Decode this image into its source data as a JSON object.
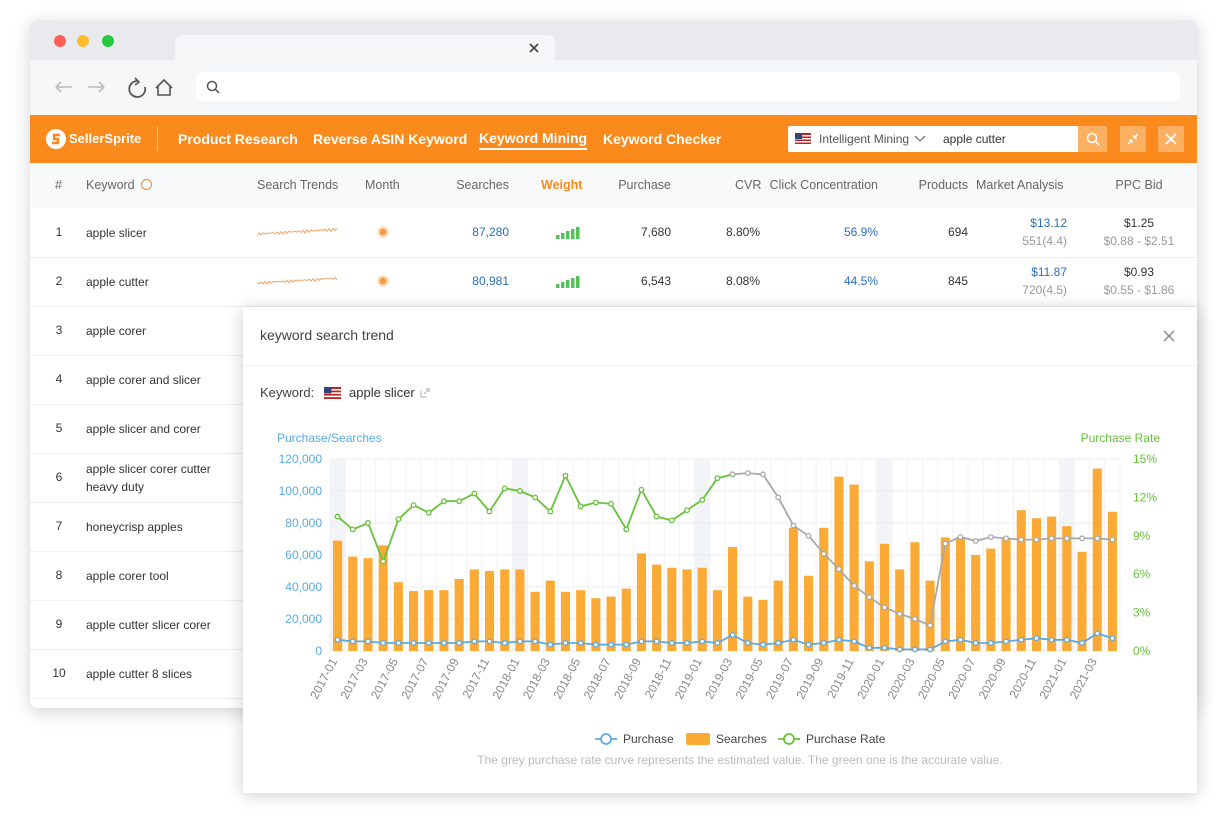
{
  "nav": {
    "logo": "SellerSprite",
    "items": [
      "Product Research",
      "Reverse ASIN Keyword",
      "Keyword Mining",
      "Keyword Checker"
    ],
    "mode": "Intelligent Mining",
    "query": "apple cutter"
  },
  "table": {
    "headers": {
      "no": "#",
      "keyword": "Keyword",
      "trends": "Search Trends",
      "month": "Month",
      "searches": "Searches",
      "weight": "Weight",
      "purchase": "Purchase",
      "cvr": "CVR",
      "click": "Click Concentration",
      "products": "Products",
      "market": "Market Analysis",
      "ppc": "PPC Bid"
    },
    "rows": [
      {
        "no": "1",
        "keyword": "apple slicer",
        "searches": "87,280",
        "purchase": "7,680",
        "cvr": "8.80%",
        "click": "56.9%",
        "products": "694",
        "market": "$13.12",
        "market_sub": "551(4.4)",
        "ppc": "$1.25",
        "ppc_range": "$0.88 - $2.51"
      },
      {
        "no": "2",
        "keyword": "apple cutter",
        "searches": "80,981",
        "purchase": "6,543",
        "cvr": "8.08%",
        "click": "44.5%",
        "products": "845",
        "market": "$11.87",
        "market_sub": "720(4.5)",
        "ppc": "$0.93",
        "ppc_range": "$0.55 - $1.86"
      },
      {
        "no": "3",
        "keyword": "apple corer"
      },
      {
        "no": "4",
        "keyword": "apple corer and slicer"
      },
      {
        "no": "5",
        "keyword": "apple slicer and corer"
      },
      {
        "no": "6",
        "keyword": "apple slicer corer cutter heavy duty"
      },
      {
        "no": "7",
        "keyword": "honeycrisp apples"
      },
      {
        "no": "8",
        "keyword": "apple corer tool"
      },
      {
        "no": "9",
        "keyword": "apple cutter slicer corer"
      },
      {
        "no": "10",
        "keyword": "apple cutter 8 slices"
      }
    ]
  },
  "popup": {
    "title": "keyword search trend",
    "keyword_label": "Keyword:",
    "keyword": "apple slicer",
    "note": "The grey purchase rate curve represents the estimated value. The green one is the accurate value."
  },
  "chart_data": {
    "type": "combo",
    "y_label": "Purchase/Searches",
    "y2_label": "Purchase Rate",
    "categories": [
      "2017-01",
      null,
      "2017-03",
      null,
      "2017-05",
      null,
      "2017-07",
      null,
      "2017-09",
      null,
      "2017-11",
      null,
      "2018-01",
      null,
      "2018-03",
      null,
      "2018-05",
      null,
      "2018-07",
      null,
      "2018-09",
      null,
      "2018-11",
      null,
      "2019-01",
      null,
      "2019-03",
      null,
      "2019-05",
      null,
      "2019-07",
      null,
      "2019-09",
      null,
      "2019-11",
      null,
      "2020-01",
      null,
      "2020-03",
      null,
      "2020-05",
      null,
      "2020-07",
      null,
      "2020-09",
      null,
      "2020-11",
      null,
      "2021-01",
      null,
      "2021-03",
      null
    ],
    "ylim": [
      0,
      120000
    ],
    "yticks": [
      0,
      {
        "value": 20000,
        "label": "20,000"
      },
      {
        "value": 40000,
        "label": "40,000"
      },
      {
        "value": 60000,
        "label": "60,000"
      },
      {
        "value": 80000,
        "label": "80,000"
      },
      {
        "value": 100000,
        "label": "100,000"
      },
      {
        "value": 120000,
        "label": "120,000"
      }
    ],
    "y2lim": [
      0,
      15
    ],
    "y2ticks": [
      {
        "value": 0,
        "label": "0%"
      },
      {
        "value": 3,
        "label": "3%"
      },
      {
        "value": 6,
        "label": "6%"
      },
      {
        "value": 9,
        "label": "9%"
      },
      {
        "value": 12,
        "label": "12%"
      },
      {
        "value": 15,
        "label": "15%"
      }
    ],
    "grid": true,
    "series": [
      {
        "name": "Purchase",
        "type": "line",
        "color": "#5aa9e6",
        "values": [
          7000,
          6000,
          6000,
          5000,
          5000,
          5000,
          5000,
          5000,
          5000,
          6000,
          6000,
          5000,
          6000,
          6000,
          4000,
          5000,
          5000,
          4000,
          4000,
          4000,
          6000,
          6000,
          5000,
          5000,
          6000,
          5000,
          10000,
          5000,
          4000,
          5000,
          7000,
          4000,
          5000,
          7000,
          6000,
          2000,
          2000,
          1000,
          1000,
          1000,
          6000,
          7000,
          5000,
          5000,
          6000,
          7000,
          8000,
          7000,
          7000,
          5000,
          11000,
          8000
        ]
      },
      {
        "name": "Searches",
        "type": "bar",
        "color": "#fbab35",
        "values": [
          69000,
          59000,
          58000,
          66000,
          43000,
          37500,
          38000,
          38000,
          45000,
          51000,
          50000,
          51000,
          51000,
          37000,
          44000,
          37000,
          38000,
          33000,
          34000,
          39000,
          61000,
          54000,
          52000,
          51000,
          52000,
          38000,
          65000,
          34000,
          32000,
          44000,
          77000,
          47000,
          77000,
          109000,
          104000,
          56000,
          67000,
          51000,
          68000,
          44000,
          71000,
          71000,
          60000,
          64000,
          70000,
          88000,
          83000,
          84000,
          78000,
          62000,
          114000,
          87000
        ]
      },
      {
        "name": "Purchase Rate",
        "type": "line",
        "axis": "y2",
        "color": "#67c23a",
        "values": [
          10.5,
          9.5,
          10,
          7,
          10.3,
          11.4,
          10.8,
          11.7,
          11.7,
          12.3,
          10.9,
          12.7,
          12.5,
          12,
          10.9,
          13.7,
          11.3,
          11.6,
          11.5,
          9.5,
          12.6,
          10.5,
          10.2,
          11,
          11.8,
          13.5,
          13.8,
          null,
          null,
          null,
          null,
          null,
          null,
          null,
          null,
          null,
          null,
          null,
          null,
          null,
          null,
          null,
          null,
          null,
          null,
          null,
          null,
          null,
          null,
          null,
          null,
          null
        ]
      },
      {
        "type": "line",
        "axis": "y2",
        "color": "#a9a9a9",
        "values": [
          null,
          null,
          null,
          null,
          null,
          null,
          null,
          null,
          null,
          null,
          null,
          null,
          null,
          null,
          null,
          null,
          null,
          null,
          null,
          null,
          null,
          null,
          null,
          null,
          null,
          null,
          13.8,
          13.9,
          13.8,
          12,
          9.8,
          9,
          7.6,
          6.4,
          5.1,
          4.2,
          3.4,
          2.9,
          2.5,
          2,
          8.4,
          8.9,
          8.6,
          8.9,
          8.8,
          8.7,
          8.7,
          8.8,
          8.8,
          8.8,
          8.8,
          8.7
        ]
      }
    ]
  }
}
